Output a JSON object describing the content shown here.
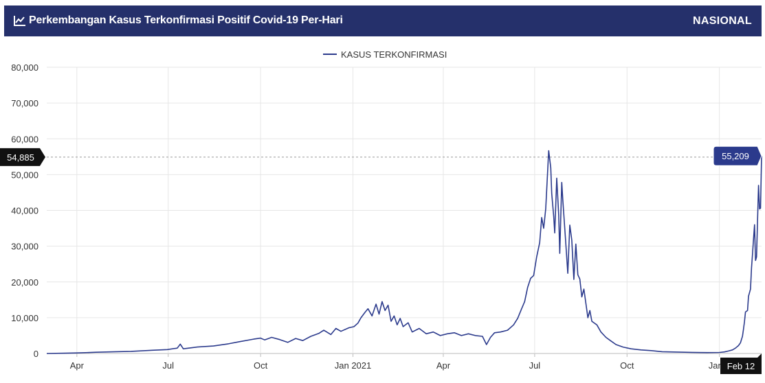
{
  "header": {
    "title": "Perkembangan Kasus Terkonfirmasi Positif Covid-19 Per-Hari",
    "scope": "NASIONAL",
    "icon": "line-chart-icon"
  },
  "colors": {
    "header_bg": "#25306b",
    "series": "#2b3a8c",
    "grid": "#e6e6e6",
    "tooltip_dark": "#111111",
    "tooltip_series": "#2b3a8c"
  },
  "chart_data": {
    "type": "line",
    "x_type": "date",
    "legend": {
      "position": "top-center"
    },
    "grid": true,
    "ylim": [
      0,
      80000
    ],
    "y_ticks": [
      0,
      10000,
      20000,
      30000,
      40000,
      50000,
      60000,
      70000,
      80000
    ],
    "y_tick_labels": [
      "0",
      "10,000",
      "20,000",
      "30,000",
      "40,000",
      "50,000",
      "60,000",
      "70,000",
      "80,000"
    ],
    "xlim": [
      "2020-03-02",
      "2022-02-12"
    ],
    "x_ticks": [
      "2020-04-01",
      "2020-07-01",
      "2020-10-01",
      "2021-01-01",
      "2021-04-01",
      "2021-07-01",
      "2021-10-01",
      "2022-01-01"
    ],
    "x_tick_labels": [
      "Apr",
      "Jul",
      "Oct",
      "Jan 2021",
      "Apr",
      "Jul",
      "Oct",
      "Jan 2"
    ],
    "crosshair": {
      "y_value": 54885,
      "y_label": "54,885",
      "x_label": "Feb 12",
      "point_label": "55,209"
    },
    "series": [
      {
        "name": "KASUS TERKONFIRMASI",
        "points": [
          [
            "2020-03-02",
            0
          ],
          [
            "2020-03-20",
            80
          ],
          [
            "2020-04-01",
            150
          ],
          [
            "2020-04-20",
            350
          ],
          [
            "2020-05-10",
            500
          ],
          [
            "2020-05-25",
            600
          ],
          [
            "2020-06-15",
            900
          ],
          [
            "2020-06-30",
            1100
          ],
          [
            "2020-07-10",
            1500
          ],
          [
            "2020-07-13",
            2600
          ],
          [
            "2020-07-16",
            1300
          ],
          [
            "2020-07-30",
            1800
          ],
          [
            "2020-08-15",
            2100
          ],
          [
            "2020-08-30",
            2700
          ],
          [
            "2020-09-10",
            3300
          ],
          [
            "2020-09-24",
            4000
          ],
          [
            "2020-10-01",
            4300
          ],
          [
            "2020-10-05",
            3800
          ],
          [
            "2020-10-12",
            4500
          ],
          [
            "2020-10-20",
            3900
          ],
          [
            "2020-10-28",
            3100
          ],
          [
            "2020-11-05",
            4200
          ],
          [
            "2020-11-12",
            3600
          ],
          [
            "2020-11-20",
            4800
          ],
          [
            "2020-11-28",
            5600
          ],
          [
            "2020-12-03",
            6500
          ],
          [
            "2020-12-10",
            5300
          ],
          [
            "2020-12-15",
            7000
          ],
          [
            "2020-12-20",
            6200
          ],
          [
            "2020-12-28",
            7200
          ],
          [
            "2021-01-02",
            7500
          ],
          [
            "2021-01-06",
            8500
          ],
          [
            "2021-01-09",
            10000
          ],
          [
            "2021-01-13",
            11500
          ],
          [
            "2021-01-16",
            12500
          ],
          [
            "2021-01-20",
            10500
          ],
          [
            "2021-01-24",
            13800
          ],
          [
            "2021-01-27",
            11000
          ],
          [
            "2021-01-30",
            14500
          ],
          [
            "2021-02-02",
            12000
          ],
          [
            "2021-02-05",
            13500
          ],
          [
            "2021-02-08",
            9000
          ],
          [
            "2021-02-11",
            10500
          ],
          [
            "2021-02-14",
            8000
          ],
          [
            "2021-02-17",
            9800
          ],
          [
            "2021-02-20",
            7500
          ],
          [
            "2021-02-25",
            8600
          ],
          [
            "2021-03-01",
            6000
          ],
          [
            "2021-03-08",
            7000
          ],
          [
            "2021-03-15",
            5500
          ],
          [
            "2021-03-22",
            6000
          ],
          [
            "2021-03-29",
            5000
          ],
          [
            "2021-04-05",
            5500
          ],
          [
            "2021-04-12",
            5800
          ],
          [
            "2021-04-19",
            5000
          ],
          [
            "2021-04-26",
            5500
          ],
          [
            "2021-05-03",
            5000
          ],
          [
            "2021-05-10",
            4800
          ],
          [
            "2021-05-14",
            2500
          ],
          [
            "2021-05-18",
            4500
          ],
          [
            "2021-05-22",
            5800
          ],
          [
            "2021-05-28",
            6000
          ],
          [
            "2021-06-04",
            6500
          ],
          [
            "2021-06-10",
            8000
          ],
          [
            "2021-06-14",
            9800
          ],
          [
            "2021-06-18",
            12500
          ],
          [
            "2021-06-21",
            14500
          ],
          [
            "2021-06-24",
            18500
          ],
          [
            "2021-06-27",
            21000
          ],
          [
            "2021-06-30",
            21800
          ],
          [
            "2021-07-03",
            27000
          ],
          [
            "2021-07-06",
            31000
          ],
          [
            "2021-07-08",
            38000
          ],
          [
            "2021-07-10",
            35000
          ],
          [
            "2021-07-12",
            40500
          ],
          [
            "2021-07-15",
            56700
          ],
          [
            "2021-07-17",
            51900
          ],
          [
            "2021-07-18",
            44700
          ],
          [
            "2021-07-20",
            38300
          ],
          [
            "2021-07-21",
            33700
          ],
          [
            "2021-07-23",
            49000
          ],
          [
            "2021-07-25",
            38600
          ],
          [
            "2021-07-26",
            28000
          ],
          [
            "2021-07-28",
            47800
          ],
          [
            "2021-07-29",
            43000
          ],
          [
            "2021-08-01",
            30700
          ],
          [
            "2021-08-03",
            22400
          ],
          [
            "2021-08-05",
            35900
          ],
          [
            "2021-08-07",
            31700
          ],
          [
            "2021-08-09",
            20700
          ],
          [
            "2021-08-11",
            30600
          ],
          [
            "2021-08-13",
            22000
          ],
          [
            "2021-08-15",
            20800
          ],
          [
            "2021-08-17",
            15800
          ],
          [
            "2021-08-19",
            18000
          ],
          [
            "2021-08-21",
            14000
          ],
          [
            "2021-08-23",
            10000
          ],
          [
            "2021-08-25",
            12000
          ],
          [
            "2021-08-27",
            9000
          ],
          [
            "2021-09-01",
            8000
          ],
          [
            "2021-09-05",
            6000
          ],
          [
            "2021-09-10",
            4500
          ],
          [
            "2021-09-15",
            3500
          ],
          [
            "2021-09-20",
            2500
          ],
          [
            "2021-09-27",
            1800
          ],
          [
            "2021-10-05",
            1300
          ],
          [
            "2021-10-15",
            1000
          ],
          [
            "2021-10-25",
            800
          ],
          [
            "2021-11-05",
            500
          ],
          [
            "2021-11-20",
            400
          ],
          [
            "2021-12-05",
            300
          ],
          [
            "2021-12-20",
            250
          ],
          [
            "2022-01-01",
            280
          ],
          [
            "2022-01-06",
            450
          ],
          [
            "2022-01-10",
            700
          ],
          [
            "2022-01-14",
            1000
          ],
          [
            "2022-01-17",
            1500
          ],
          [
            "2022-01-20",
            2200
          ],
          [
            "2022-01-22",
            3000
          ],
          [
            "2022-01-24",
            4800
          ],
          [
            "2022-01-25",
            6800
          ],
          [
            "2022-01-26",
            9000
          ],
          [
            "2022-01-27",
            11600
          ],
          [
            "2022-01-29",
            12000
          ],
          [
            "2022-01-30",
            16000
          ],
          [
            "2022-02-01",
            18000
          ],
          [
            "2022-02-02",
            24000
          ],
          [
            "2022-02-03",
            28000
          ],
          [
            "2022-02-04",
            32000
          ],
          [
            "2022-02-05",
            36000
          ],
          [
            "2022-02-06",
            26000
          ],
          [
            "2022-02-07",
            27000
          ],
          [
            "2022-02-08",
            37500
          ],
          [
            "2022-02-09",
            47000
          ],
          [
            "2022-02-10",
            40400
          ],
          [
            "2022-02-11",
            40600
          ],
          [
            "2022-02-12",
            55209
          ]
        ]
      }
    ]
  }
}
